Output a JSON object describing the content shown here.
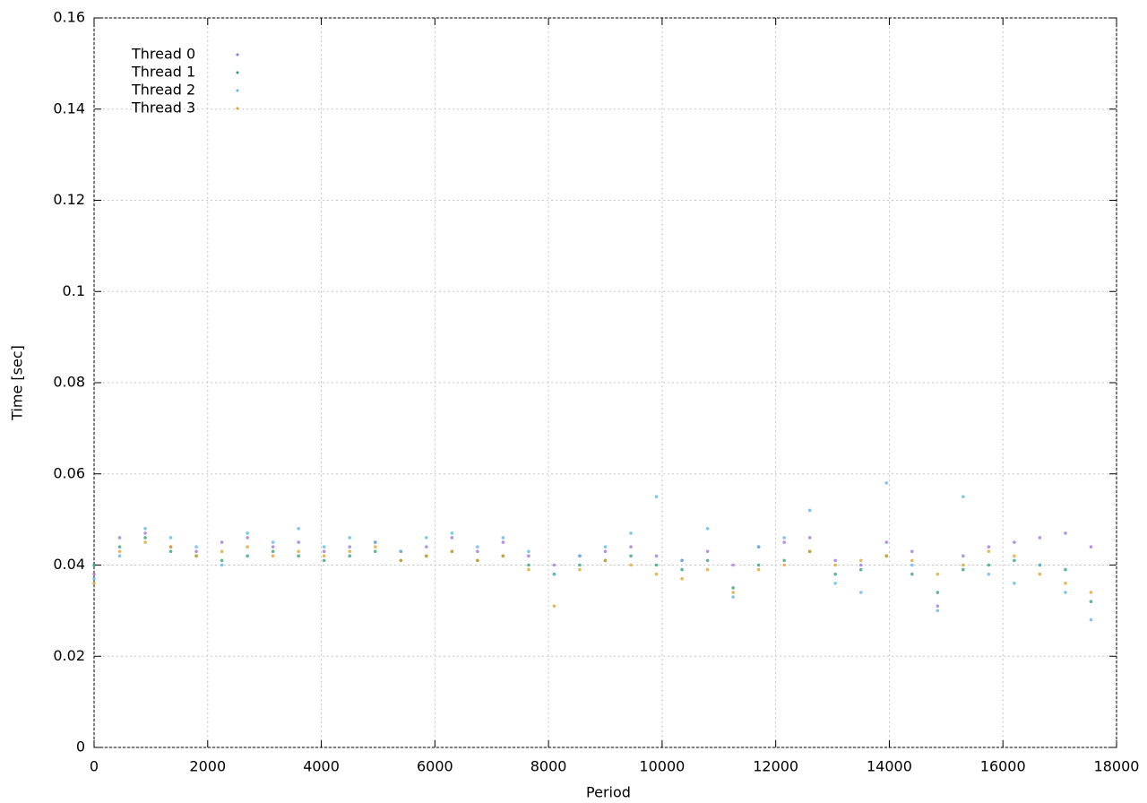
{
  "chart_data": {
    "type": "scatter",
    "xlabel": "Period",
    "ylabel": "Time [sec]",
    "x": [
      0,
      450,
      900,
      1350,
      1800,
      2250,
      2700,
      3150,
      3600,
      4050,
      4500,
      4950,
      5400,
      5850,
      6300,
      6750,
      7200,
      7650,
      8100,
      8550,
      9000,
      9450,
      9900,
      10350,
      10800,
      11250,
      11700,
      12150,
      12600,
      13050,
      13500,
      13950,
      14400,
      14850,
      15300,
      15750,
      16200,
      16650,
      17100,
      17550
    ],
    "series": [
      {
        "name": "Thread 0",
        "color": "#9b6fd6",
        "values": [
          0.038,
          0.046,
          0.047,
          0.044,
          0.043,
          0.045,
          0.046,
          0.044,
          0.045,
          0.043,
          0.044,
          0.045,
          0.043,
          0.044,
          0.046,
          0.043,
          0.045,
          0.042,
          0.04,
          0.042,
          0.043,
          0.044,
          0.042,
          0.041,
          0.043,
          0.04,
          0.044,
          0.045,
          0.046,
          0.041,
          0.04,
          0.045,
          0.043,
          0.031,
          0.042,
          0.044,
          0.045,
          0.046,
          0.047,
          0.044
        ]
      },
      {
        "name": "Thread 1",
        "color": "#2a9d6f",
        "values": [
          0.04,
          0.044,
          0.046,
          0.043,
          0.042,
          0.041,
          0.042,
          0.043,
          0.042,
          0.041,
          0.042,
          0.043,
          0.041,
          0.042,
          0.043,
          0.041,
          0.042,
          0.04,
          0.038,
          0.04,
          0.041,
          0.042,
          0.04,
          0.039,
          0.041,
          0.035,
          0.04,
          0.041,
          0.043,
          0.038,
          0.039,
          0.042,
          0.038,
          0.034,
          0.039,
          0.04,
          0.041,
          0.04,
          0.039,
          0.032
        ]
      },
      {
        "name": "Thread 2",
        "color": "#56b4e9",
        "values": [
          0.037,
          0.042,
          0.048,
          0.046,
          0.044,
          0.04,
          0.047,
          0.045,
          0.048,
          0.044,
          0.046,
          0.045,
          0.043,
          0.046,
          0.047,
          0.044,
          0.046,
          0.043,
          0.038,
          0.042,
          0.044,
          0.047,
          0.055,
          0.041,
          0.048,
          0.033,
          0.044,
          0.046,
          0.052,
          0.036,
          0.034,
          0.058,
          0.04,
          0.03,
          0.055,
          0.038,
          0.036,
          0.04,
          0.034,
          0.028
        ]
      },
      {
        "name": "Thread 3",
        "color": "#e0a020",
        "values": [
          0.036,
          0.043,
          0.045,
          0.044,
          0.042,
          0.043,
          0.044,
          0.042,
          0.043,
          0.042,
          0.043,
          0.044,
          0.041,
          0.042,
          0.043,
          0.041,
          0.042,
          0.039,
          0.031,
          0.039,
          0.041,
          0.04,
          0.038,
          0.037,
          0.039,
          0.034,
          0.039,
          0.04,
          0.043,
          0.04,
          0.041,
          0.042,
          0.041,
          0.038,
          0.04,
          0.043,
          0.042,
          0.038,
          0.036,
          0.034
        ]
      }
    ],
    "xlim": [
      0,
      18000
    ],
    "xticks": [
      0,
      2000,
      4000,
      6000,
      8000,
      10000,
      12000,
      14000,
      16000,
      18000
    ],
    "ylim": [
      0,
      0.16
    ],
    "yticks": [
      0,
      0.02,
      0.04,
      0.06,
      0.08,
      0.1,
      0.12,
      0.14,
      0.16
    ],
    "grid": true,
    "legend": "top-left"
  }
}
